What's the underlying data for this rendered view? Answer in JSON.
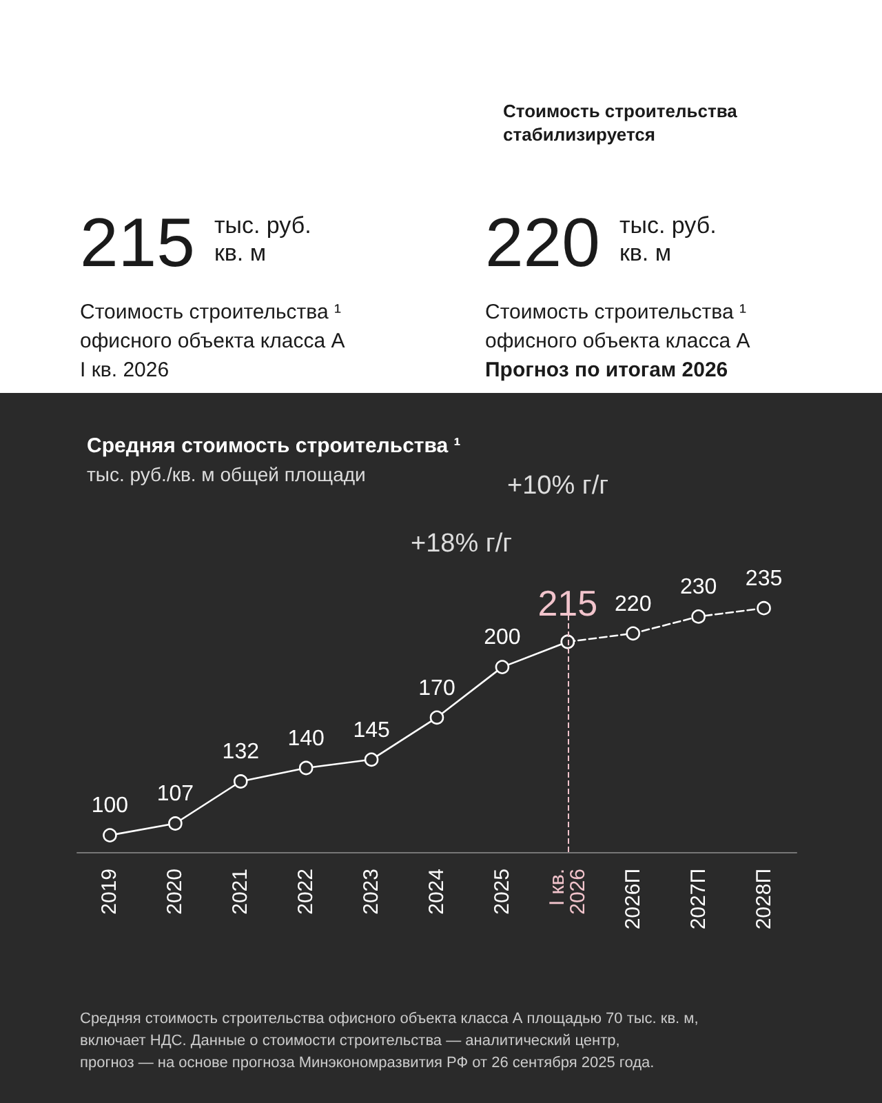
{
  "chart_data": [
    {
      "type": "other",
      "title": "Стоимость строительства стабилизируется",
      "annotations": [
        "215",
        "тыс. руб.\nкв. м",
        "Стоимость строительства ¹\nофисного объекта класса А",
        "I кв. 2026",
        "220",
        "тыс. руб.\nкв. м",
        "Стоимость строительства ¹\nофисного объекта класса А",
        "Прогноз по итогам 2026"
      ]
    },
    {
      "type": "line",
      "title": "Средняя стоимость строительства ¹",
      "subtitle": "тыс. руб./кв. м общей площади",
      "categories": [
        "2019",
        "2020",
        "2021",
        "2022",
        "2023",
        "2024",
        "2025",
        "I кв.\n2026",
        "2026П",
        "2027П",
        "2028П"
      ],
      "series": [
        {
          "color": "#ffffff",
          "line_style": "solid",
          "colors": [
            "#ffffff",
            "#ffffff",
            "#ffffff",
            "#ffffff",
            "#ffffff",
            "#ffffff",
            "#ffffff",
            "#f2c4cc",
            "#ffffff",
            "#ffffff",
            "#ffffff"
          ],
          "values": [
            100,
            107,
            132,
            140,
            145,
            170,
            200,
            215,
            null,
            null,
            null
          ],
          "value_labels": [
            "100",
            "107",
            "132",
            "140",
            "145",
            "170",
            "200",
            "215",
            null,
            null,
            null
          ]
        },
        {
          "color": "#ffffff",
          "line_style": "dashed",
          "values": [
            null,
            null,
            null,
            null,
            null,
            null,
            null,
            215,
            220,
            230,
            235
          ],
          "value_labels": [
            null,
            null,
            null,
            null,
            null,
            null,
            null,
            null,
            "220",
            "230",
            "235"
          ]
        }
      ],
      "marker": "circle",
      "grid": false,
      "ref_lines": [
        {
          "axis": "x",
          "value": "I кв.\n2026",
          "color": "#f2c4cc",
          "line_style": "dashed"
        }
      ],
      "annotations": [
        "+18% г/г",
        "+10% г/г",
        "Средняя стоимость строительства офисного объекта класса А площадью 70 тыс. кв. м,\nвключает НДС. Данные о стоимости строительства — аналитический центр,\nпрогноз — на основе прогноза Минэкономразвития РФ от 26 сентября 2025 года."
      ]
    }
  ]
}
